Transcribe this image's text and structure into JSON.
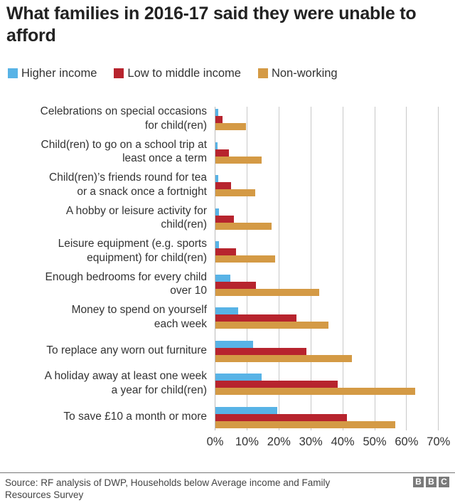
{
  "title": "What families in 2016-17 said they were unable to afford",
  "legend": [
    {
      "label": "Higher income",
      "color": "#58b3e6"
    },
    {
      "label": "Low to middle income",
      "color": "#b7242e"
    },
    {
      "label": "Non-working",
      "color": "#d49a45"
    }
  ],
  "axis": {
    "ticks": [
      "0%",
      "10%",
      "20%",
      "30%",
      "40%",
      "50%",
      "60%",
      "70%"
    ]
  },
  "categories": [
    {
      "line1": "Celebrations on special occasions",
      "line2": "for child(ren)"
    },
    {
      "line1": "Child(ren) to go on a school trip at",
      "line2": "least once a term"
    },
    {
      "line1": "Child(ren)’s friends round for tea",
      "line2": "or a snack once a fortnight"
    },
    {
      "line1": "A hobby or leisure activity for",
      "line2": "child(ren)"
    },
    {
      "line1": "Leisure equipment (e.g. sports",
      "line2": "equipment)  for child(ren)"
    },
    {
      "line1": "Enough bedrooms for every child",
      "line2": "over 10"
    },
    {
      "line1": "Money to spend on yourself",
      "line2": "each week"
    },
    {
      "line1": "To replace any worn out furniture",
      "line2": ""
    },
    {
      "line1": "A holiday away at least one week",
      "line2": "a year for child(ren)"
    },
    {
      "line1": "To save £10 a month or more",
      "line2": ""
    }
  ],
  "footer": {
    "source": "Source: RF analysis of DWP, Households below Average income and Family Resources Survey",
    "logo": [
      "B",
      "B",
      "C"
    ]
  },
  "chart_data": {
    "type": "bar",
    "orientation": "horizontal",
    "title": "What families in 2016-17 said they were unable to afford",
    "xlabel": "",
    "ylabel": "",
    "xlim": [
      0,
      70
    ],
    "x_ticks": [
      "0%",
      "10%",
      "20%",
      "30%",
      "40%",
      "50%",
      "60%",
      "70%"
    ],
    "grid": true,
    "legend_position": "top-left",
    "categories": [
      "Celebrations on special occasions for child(ren)",
      "Child(ren) to go on a school trip at least once a term",
      "Child(ren)’s friends round for tea or a snack once a fortnight",
      "A hobby or leisure activity for child(ren)",
      "Leisure equipment (e.g. sports equipment) for child(ren)",
      "Enough bedrooms for every child over 10",
      "Money to spend on yourself each week",
      "To replace any worn out furniture",
      "A holiday away at least one week a year for child(ren)",
      "To save £10 a month or more"
    ],
    "series": [
      {
        "name": "Higher income",
        "color": "#58b3e6",
        "values": [
          0.8,
          0.7,
          0.8,
          1.2,
          1.2,
          4.7,
          7.1,
          11.8,
          14.5,
          19.3
        ]
      },
      {
        "name": "Low to middle income",
        "color": "#b7242e",
        "values": [
          2.3,
          4.3,
          4.9,
          5.9,
          6.5,
          12.8,
          25.5,
          28.5,
          38.3,
          41.3
        ]
      },
      {
        "name": "Non-working",
        "color": "#d49a45",
        "values": [
          9.6,
          14.5,
          12.4,
          17.5,
          18.7,
          32.6,
          35.4,
          42.8,
          62.5,
          56.3
        ]
      }
    ],
    "source": "Source: RF analysis of DWP, Households below Average income and Family Resources Survey"
  }
}
